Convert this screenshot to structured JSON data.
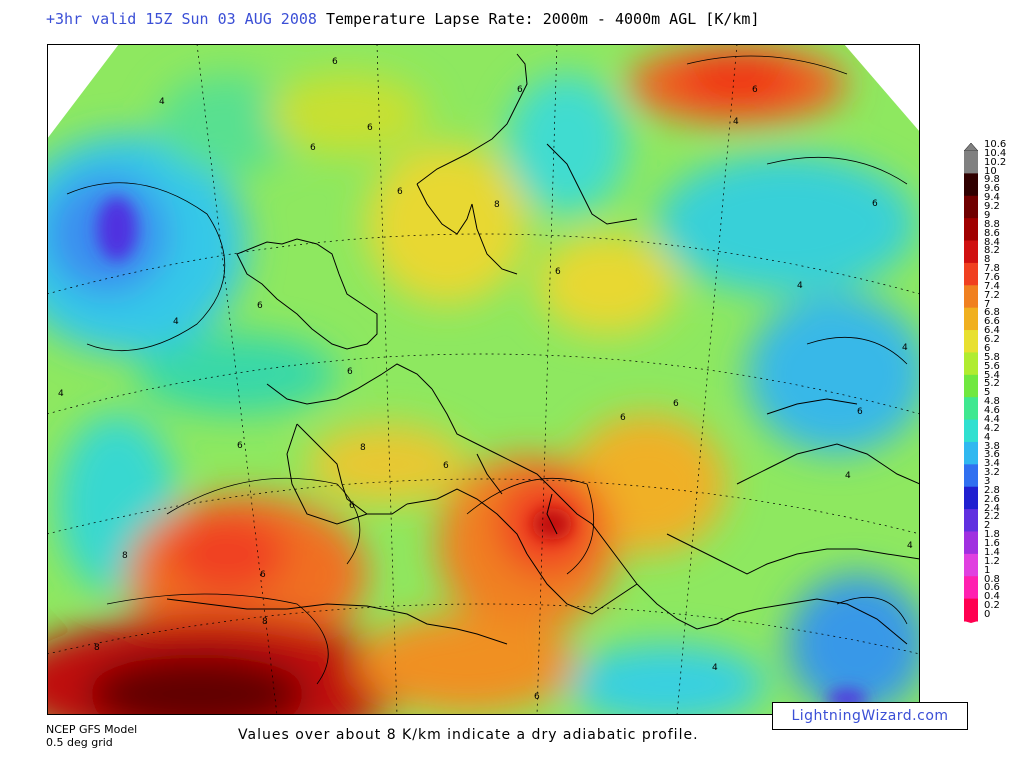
{
  "header": {
    "valid_time": "+3hr valid 15Z Sun 03 AUG 2008",
    "title": "Temperature Lapse Rate: 2000m - 4000m AGL  [K/km]"
  },
  "map": {
    "region": "Europe and North Africa",
    "contour_labels": [
      "4",
      "6",
      "8"
    ]
  },
  "colorbar": {
    "labels": [
      "10.6",
      "10.4",
      "10.2",
      "10",
      "9.8",
      "9.6",
      "9.4",
      "9.2",
      "9",
      "8.8",
      "8.6",
      "8.4",
      "8.2",
      "8",
      "7.8",
      "7.6",
      "7.4",
      "7.2",
      "7",
      "6.8",
      "6.6",
      "6.4",
      "6.2",
      "6",
      "5.8",
      "5.6",
      "5.4",
      "5.2",
      "5",
      "4.8",
      "4.6",
      "4.4",
      "4.2",
      "4",
      "3.8",
      "3.6",
      "3.4",
      "3.2",
      "3",
      "2.8",
      "2.6",
      "2.4",
      "2.2",
      "2",
      "1.8",
      "1.6",
      "1.4",
      "1.2",
      "1",
      "0.8",
      "0.6",
      "0.4",
      "0.2",
      "0"
    ],
    "min": 0,
    "max": 10.6,
    "colors": [
      "#ff0050",
      "#ff20b0",
      "#e040e0",
      "#a030e0",
      "#6030e0",
      "#2020d0",
      "#3070f0",
      "#30b8f0",
      "#30e0d0",
      "#40e890",
      "#70e840",
      "#b0ec30",
      "#e8e030",
      "#f0b020",
      "#f08020",
      "#f04020",
      "#d01010",
      "#a00000",
      "#700000",
      "#300000",
      "#808080"
    ]
  },
  "footer": {
    "model": "NCEP GFS Model",
    "grid": "0.5 deg grid",
    "note": "Values over about 8 K/km indicate a dry adiabatic profile.",
    "site": "LightningWizard.com"
  }
}
